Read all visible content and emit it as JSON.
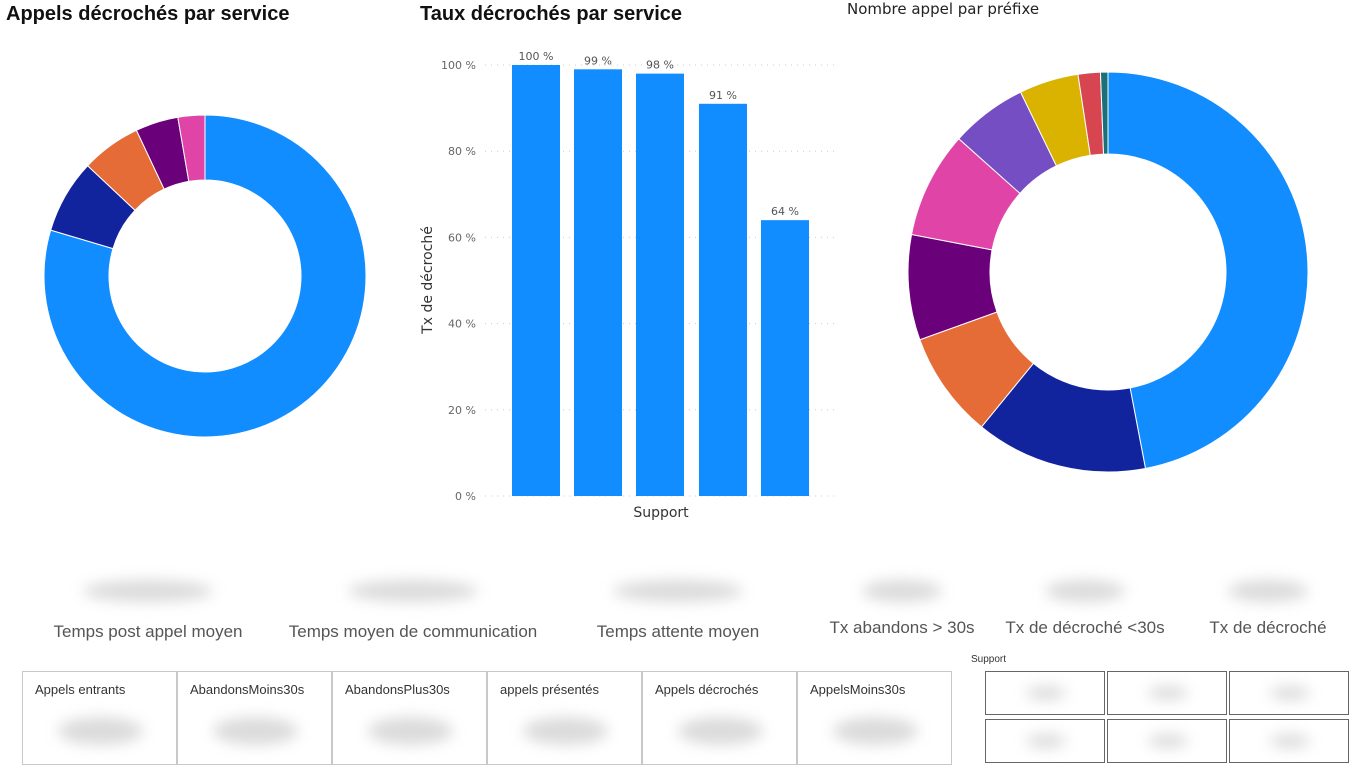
{
  "chart_data": [
    {
      "type": "pie",
      "variant": "donut",
      "title": "Appels décrochés par service",
      "values": [
        79.6,
        7.4,
        6.0,
        4.3,
        2.7
      ],
      "colors": [
        "#118DFF",
        "#12239E",
        "#E66C37",
        "#6B007B",
        "#E044A7"
      ]
    },
    {
      "type": "bar",
      "title": "Taux décrochés par service",
      "xlabel": "Support",
      "ylabel": "Tx de décroché",
      "values": [
        100,
        99,
        98,
        91,
        64
      ],
      "data_labels": [
        "100 %",
        "99 %",
        "98 %",
        "91 %",
        "64 %"
      ],
      "yticks": [
        "0 %",
        "20 %",
        "40 %",
        "60 %",
        "80 %",
        "100 %"
      ],
      "ylim": [
        0,
        100
      ],
      "grid": true,
      "color": "#118DFF"
    },
    {
      "type": "pie",
      "variant": "donut",
      "title": "Nombre appel par préfixe",
      "values": [
        47.0,
        13.9,
        8.6,
        8.5,
        8.6,
        6.2,
        4.8,
        1.8,
        0.6
      ],
      "colors": [
        "#118DFF",
        "#12239E",
        "#E66C37",
        "#6B007B",
        "#E044A7",
        "#744EC2",
        "#D9B300",
        "#D64550",
        "#197278"
      ]
    }
  ],
  "kpis": [
    "Temps post appel moyen",
    "Temps moyen de communication",
    "Temps attente moyen",
    "Tx abandons > 30s",
    "Tx de décroché <30s",
    "Tx de décroché"
  ],
  "cards": [
    "Appels entrants",
    "AbandonsMoins30s",
    "AbandonsPlus30s",
    "appels présentés",
    "Appels décrochés",
    "AppelsMoins30s"
  ],
  "slicer": {
    "title": "Support"
  }
}
